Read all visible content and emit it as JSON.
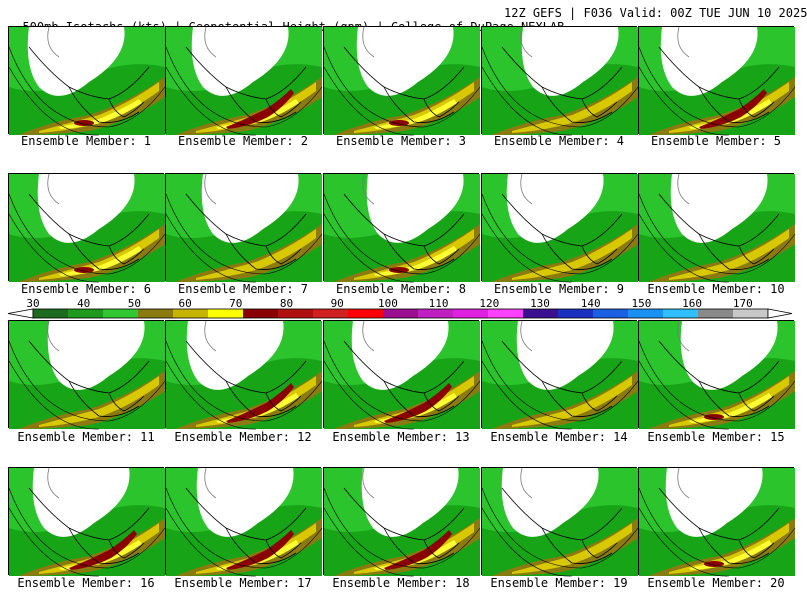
{
  "header": {
    "left": "500mb Isotachs (kts) | Geopotential Height (gpm) | College of DuPage NEXLAB",
    "right": "12Z GEFS | F036 Valid: 00Z TUE JUN 10 2025"
  },
  "colorbar": {
    "labels": [
      "30",
      "40",
      "50",
      "60",
      "70",
      "80",
      "90",
      "100",
      "110",
      "120",
      "130",
      "140",
      "150",
      "160",
      "170"
    ],
    "colors": [
      "#1d6b1d",
      "#1f9a1f",
      "#32c832",
      "#8a7a10",
      "#c7b400",
      "#ffff00",
      "#8a0000",
      "#b01010",
      "#d02020",
      "#ff0000",
      "#9a1090",
      "#c020c0",
      "#e020e0",
      "#ff40ff",
      "#3a1090",
      "#1a30c0",
      "#1a60e0",
      "#1a90f0",
      "#30c0ff",
      "#8a8a8a",
      "#c8c8c8"
    ]
  },
  "members": [
    {
      "label": "Ensemble Member: 1",
      "jet": "med"
    },
    {
      "label": "Ensemble Member: 2",
      "jet": "strong"
    },
    {
      "label": "Ensemble Member: 3",
      "jet": "med"
    },
    {
      "label": "Ensemble Member: 4",
      "jet": "weak"
    },
    {
      "label": "Ensemble Member: 5",
      "jet": "strong"
    },
    {
      "label": "Ensemble Member: 6",
      "jet": "med"
    },
    {
      "label": "Ensemble Member: 7",
      "jet": "weak"
    },
    {
      "label": "Ensemble Member: 8",
      "jet": "med"
    },
    {
      "label": "Ensemble Member: 9",
      "jet": "weak"
    },
    {
      "label": "Ensemble Member: 10",
      "jet": "weak"
    },
    {
      "label": "Ensemble Member: 11",
      "jet": "weak"
    },
    {
      "label": "Ensemble Member: 12",
      "jet": "strong"
    },
    {
      "label": "Ensemble Member: 13",
      "jet": "strong"
    },
    {
      "label": "Ensemble Member: 14",
      "jet": "weak"
    },
    {
      "label": "Ensemble Member: 15",
      "jet": "med"
    },
    {
      "label": "Ensemble Member: 16",
      "jet": "strong"
    },
    {
      "label": "Ensemble Member: 17",
      "jet": "strong"
    },
    {
      "label": "Ensemble Member: 18",
      "jet": "strong"
    },
    {
      "label": "Ensemble Member: 19",
      "jet": "weak"
    },
    {
      "label": "Ensemble Member: 20",
      "jet": "med"
    }
  ]
}
